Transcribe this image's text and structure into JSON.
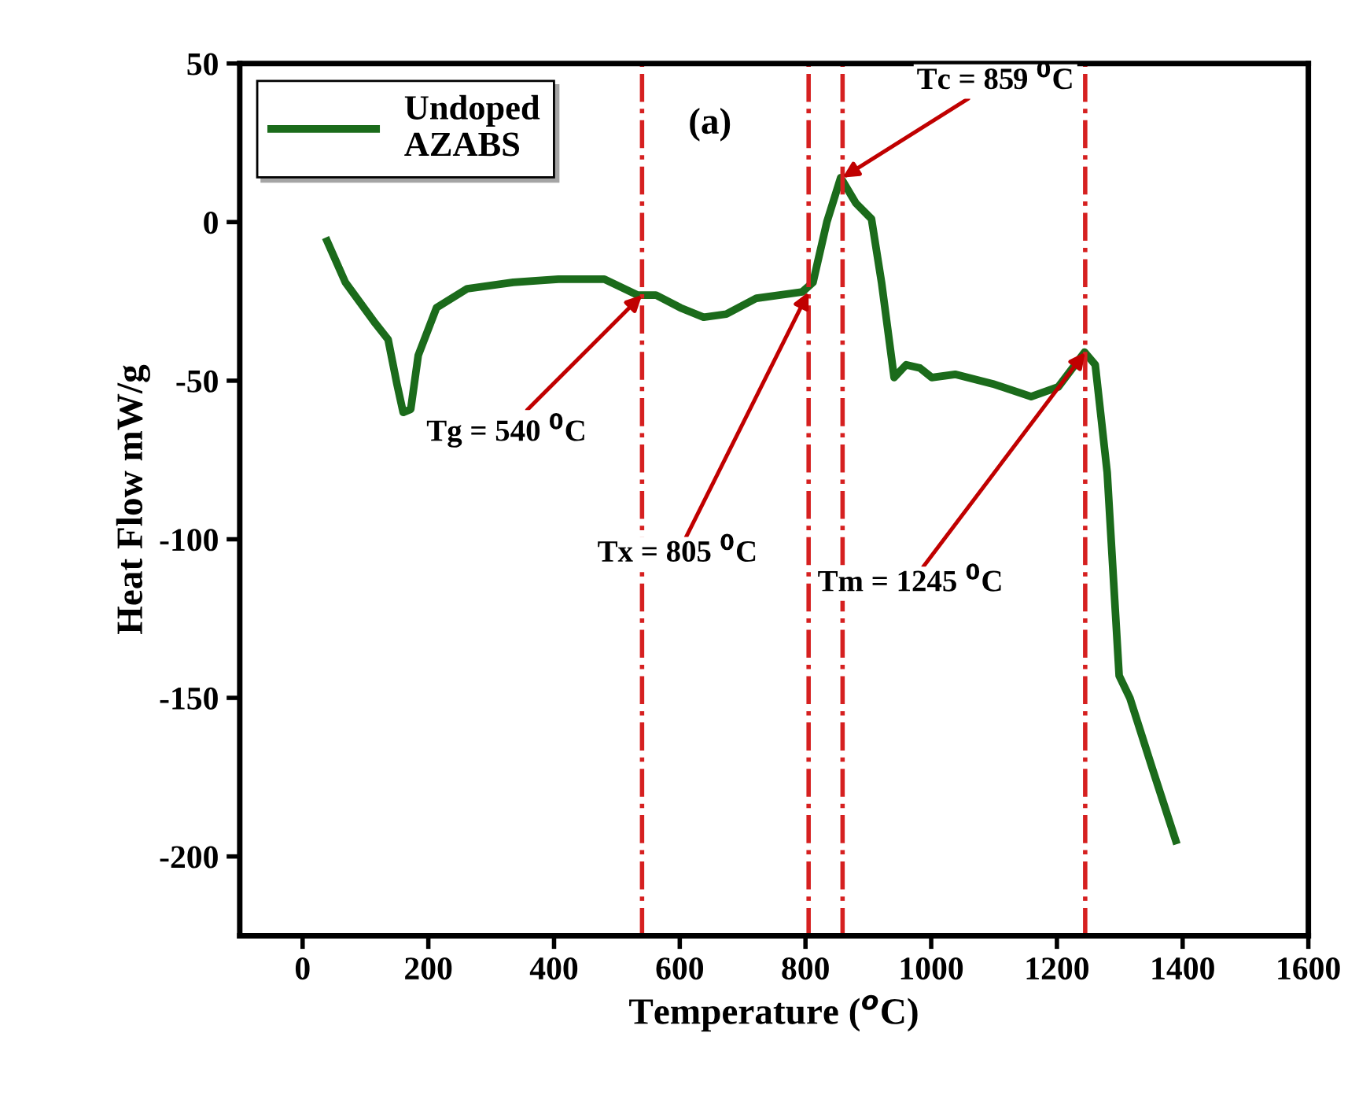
{
  "chart_data": {
    "type": "line",
    "title": "(a)",
    "xlabel": "Temperature ($^{o}$C)",
    "ylabel": "Heat Flow mW/g",
    "x": [
      39,
      68,
      116,
      136,
      150,
      160,
      172,
      184,
      213,
      262,
      335,
      407,
      480,
      533,
      562,
      601,
      638,
      674,
      722,
      795,
      812,
      834,
      856,
      880,
      905,
      921,
      941,
      960,
      982,
      1001,
      1038,
      1098,
      1159,
      1202,
      1244,
      1261,
      1280,
      1299,
      1316,
      1353,
      1389
    ],
    "series": [
      {
        "name": "Undoped AZABS",
        "color": "#1b6b1b",
        "values": [
          -6,
          -19,
          -32,
          -37,
          -51,
          -60,
          -59,
          -42,
          -27,
          -21,
          -19,
          -18,
          -18,
          -23,
          -23,
          -27,
          -30,
          -29,
          -24,
          -22,
          -19,
          0,
          14,
          6,
          1,
          -19,
          -49,
          -45,
          -46,
          -49,
          -48,
          -51,
          -55,
          -52,
          -41,
          -45,
          -79,
          -143,
          -150,
          -173,
          -195
        ]
      }
    ],
    "xlim": [
      -100,
      1600
    ],
    "xticks": [
      0,
      200,
      400,
      600,
      800,
      1000,
      1200,
      1400,
      1600
    ],
    "ylim": [
      -225,
      50
    ],
    "yticks": [
      -200,
      -150,
      -100,
      -50,
      0,
      50
    ],
    "ref_lines": [
      {
        "axis": "x",
        "value": 540,
        "color": "#d62020",
        "line_style": "dashdot"
      },
      {
        "axis": "x",
        "value": 805,
        "color": "#d62020",
        "line_style": "dashdot"
      },
      {
        "axis": "x",
        "value": 859,
        "color": "#d62020",
        "line_style": "dashdot"
      },
      {
        "axis": "x",
        "value": 1245,
        "color": "#d62020",
        "line_style": "dashdot"
      }
    ],
    "annotations": [
      {
        "text": "Tg = 540 $^{0}$C",
        "x": 540,
        "y": -23
      },
      {
        "text": "Tx = 805 $^{0}$C",
        "x": 805,
        "y": -22
      },
      {
        "text": "Tc = 859 $^{0}$C",
        "x": 859,
        "y": 14
      },
      {
        "text": "Tm = 1245 $^{0}$C",
        "x": 1245,
        "y": -41
      }
    ],
    "legend": "top left",
    "grid": false,
    "marker": "none",
    "line_style": "solid"
  }
}
